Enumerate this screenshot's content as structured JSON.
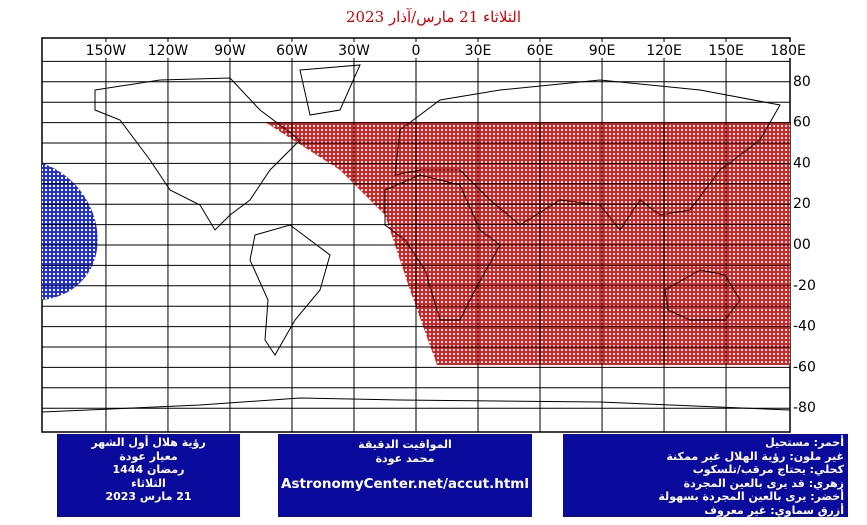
{
  "map": {
    "title": "الثلاثاء 21 مارس/آذار 2023",
    "longitude_labels": [
      "150W",
      "120W",
      "90W",
      "60W",
      "30W",
      "0",
      "30E",
      "60E",
      "90E",
      "120E",
      "150E",
      "180E"
    ],
    "latitude_labels": [
      "80",
      "60",
      "40",
      "20",
      "00",
      "-20",
      "-40",
      "-60",
      "-80"
    ],
    "info_box": [
      "رؤية هلال أول الشهر",
      "معيار عودة",
      "رمضان 1444",
      "الثلاثاء",
      "21 مارس 2023"
    ],
    "credit_box": {
      "lines": [
        "المواقيت الدقيقة",
        "محمد عودة"
      ],
      "url": "AstronomyCenter.net/accut.html"
    },
    "legend_box": [
      "أحمر: مستحيل",
      "غير ملون: رؤية الهلال غير ممكنة",
      "كحلي: يحتاج مرقب/تلسكوب",
      "زهري: قد يرى بالعين المجردة",
      "أخضر: يرى بالعين المجردة بسهولة",
      "أزرق سماوي: غير معروف"
    ]
  }
}
